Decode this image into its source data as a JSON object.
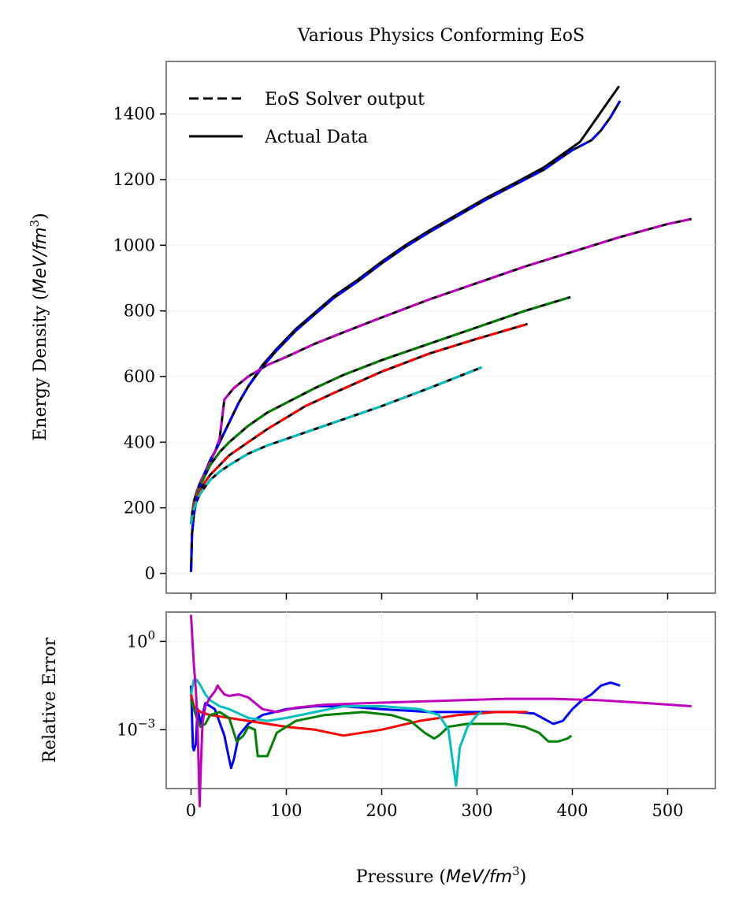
{
  "chart_data": [
    {
      "type": "line",
      "title": "Various Physics Conforming EoS",
      "xlabel": "Pressure",
      "xlabel_unit": "MeV/fm",
      "ylabel": "Energy Density",
      "ylabel_unit": "MeV/fm",
      "unit_exponent": "3",
      "xlim": [
        -26,
        550
      ],
      "ylim": [
        -60,
        1560
      ],
      "x_ticks": [
        0,
        100,
        200,
        300,
        400,
        500
      ],
      "x_tick_labels": [
        "0",
        "100",
        "200",
        "300",
        "400",
        "500"
      ],
      "y_ticks": [
        0,
        200,
        400,
        600,
        800,
        1000,
        1200,
        1400
      ],
      "y_tick_labels": [
        "0",
        "200",
        "400",
        "600",
        "800",
        "1000",
        "1200",
        "1400"
      ],
      "legend": {
        "position": "top-left",
        "entries": [
          {
            "label": "EoS Solver output",
            "style": "dashed",
            "color": "#000000"
          },
          {
            "label": "Actual Data",
            "style": "solid",
            "color": "#000000"
          }
        ]
      },
      "series": [
        {
          "name": "blue",
          "color": "#0000ff",
          "x": [
            0,
            1,
            3,
            6,
            10,
            15,
            20,
            25,
            30,
            40,
            50,
            60,
            75,
            90,
            110,
            130,
            150,
            175,
            200,
            225,
            250,
            280,
            310,
            340,
            370,
            400,
            410,
            420,
            430,
            440,
            450
          ],
          "y": [
            5,
            120,
            180,
            230,
            270,
            310,
            345,
            370,
            400,
            460,
            520,
            570,
            630,
            680,
            740,
            790,
            840,
            890,
            945,
            995,
            1040,
            1090,
            1140,
            1185,
            1230,
            1290,
            1305,
            1320,
            1350,
            1390,
            1440
          ]
        },
        {
          "name": "blue-actual",
          "color": "#000000",
          "x": [
            0,
            1,
            3,
            6,
            10,
            15,
            20,
            25,
            30,
            40,
            50,
            60,
            75,
            90,
            110,
            130,
            150,
            175,
            200,
            225,
            250,
            280,
            310,
            340,
            370,
            408,
            449
          ],
          "y": [
            5,
            120,
            180,
            230,
            270,
            310,
            345,
            370,
            400,
            460,
            520,
            570,
            635,
            685,
            745,
            795,
            845,
            895,
            950,
            1000,
            1045,
            1095,
            1145,
            1190,
            1237,
            1315,
            1485
          ]
        },
        {
          "name": "magenta",
          "color": "#bf00bf",
          "x": [
            0,
            1,
            3,
            6,
            10,
            15,
            20,
            25,
            30,
            35,
            45,
            60,
            80,
            100,
            130,
            160,
            200,
            250,
            300,
            350,
            400,
            450,
            500,
            525
          ],
          "y": [
            150,
            180,
            220,
            250,
            280,
            310,
            340,
            370,
            410,
            530,
            565,
            600,
            635,
            660,
            700,
            735,
            780,
            835,
            885,
            935,
            980,
            1025,
            1065,
            1080
          ]
        },
        {
          "name": "green",
          "color": "#008000",
          "x": [
            0,
            1,
            3,
            6,
            10,
            15,
            20,
            30,
            40,
            60,
            80,
            100,
            130,
            160,
            200,
            250,
            300,
            350,
            398
          ],
          "y": [
            150,
            175,
            210,
            240,
            270,
            300,
            330,
            370,
            400,
            450,
            490,
            520,
            565,
            605,
            650,
            700,
            750,
            800,
            842
          ]
        },
        {
          "name": "red",
          "color": "#ff0000",
          "x": [
            0,
            1,
            3,
            6,
            10,
            15,
            20,
            30,
            40,
            60,
            80,
            100,
            120,
            150,
            200,
            250,
            300,
            353
          ],
          "y": [
            150,
            170,
            200,
            230,
            255,
            280,
            300,
            330,
            360,
            400,
            440,
            475,
            510,
            550,
            615,
            670,
            715,
            760
          ]
        },
        {
          "name": "cyan",
          "color": "#00bfbf",
          "x": [
            0,
            1,
            3,
            6,
            10,
            15,
            20,
            30,
            40,
            60,
            80,
            100,
            130,
            160,
            200,
            250,
            305
          ],
          "y": [
            150,
            170,
            195,
            220,
            245,
            265,
            285,
            310,
            330,
            365,
            390,
            410,
            440,
            470,
            510,
            565,
            628
          ]
        }
      ]
    },
    {
      "type": "line",
      "yscale": "log",
      "ylabel": "Relative Error",
      "xlim": [
        -26,
        550
      ],
      "ylim_exponent": [
        -5,
        1
      ],
      "y_ticks_exponent": [
        0,
        -3
      ],
      "y_tick_base": "10",
      "y_tick_exponents": [
        "0",
        "−3"
      ],
      "series": [
        {
          "name": "blue",
          "color": "#0000ff",
          "x": [
            0,
            2,
            3,
            5,
            7,
            10,
            15,
            25,
            35,
            40,
            42,
            45,
            50,
            60,
            75,
            100,
            130,
            160,
            200,
            250,
            300,
            340,
            360,
            380,
            390,
            400,
            410,
            420,
            430,
            440,
            450
          ],
          "log10y": [
            -1.5,
            -3.6,
            -3.7,
            -3.5,
            -2.3,
            -2.8,
            -2.1,
            -2.3,
            -3.2,
            -4.0,
            -4.3,
            -4.0,
            -3.2,
            -2.8,
            -2.5,
            -2.3,
            -2.2,
            -2.2,
            -2.3,
            -2.4,
            -2.4,
            -2.4,
            -2.45,
            -2.8,
            -2.7,
            -2.3,
            -2.0,
            -1.8,
            -1.5,
            -1.4,
            -1.5
          ]
        },
        {
          "name": "red",
          "color": "#ff0000",
          "x": [
            0,
            3,
            6,
            10,
            20,
            40,
            60,
            80,
            100,
            130,
            160,
            200,
            240,
            280,
            320,
            353
          ],
          "log10y": [
            -1.8,
            -2.2,
            -2.3,
            -2.4,
            -2.5,
            -2.6,
            -2.7,
            -2.8,
            -2.9,
            -3.0,
            -3.2,
            -3.0,
            -2.7,
            -2.5,
            -2.4,
            -2.4
          ]
        },
        {
          "name": "green",
          "color": "#008000",
          "x": [
            0,
            3,
            6,
            10,
            15,
            20,
            30,
            40,
            48,
            55,
            60,
            67,
            70,
            78,
            80,
            90,
            110,
            140,
            180,
            210,
            230,
            245,
            255,
            260,
            270,
            290,
            310,
            330,
            350,
            365,
            375,
            385,
            395,
            399
          ],
          "log10y": [
            -2.0,
            -2.3,
            -2.6,
            -2.9,
            -2.8,
            -2.5,
            -2.4,
            -2.6,
            -3.4,
            -3.2,
            -2.9,
            -3.0,
            -3.9,
            -3.9,
            -3.9,
            -3.1,
            -2.7,
            -2.5,
            -2.4,
            -2.5,
            -2.7,
            -3.1,
            -3.3,
            -3.2,
            -2.9,
            -2.8,
            -2.8,
            -2.8,
            -2.9,
            -3.1,
            -3.4,
            -3.4,
            -3.3,
            -3.2
          ]
        },
        {
          "name": "cyan",
          "color": "#00bfbf",
          "x": [
            0,
            3,
            6,
            10,
            15,
            20,
            30,
            40,
            60,
            80,
            100,
            130,
            160,
            200,
            240,
            260,
            270,
            275,
            278,
            282,
            290,
            300,
            305
          ],
          "log10y": [
            -1.8,
            -1.3,
            -1.3,
            -1.5,
            -1.8,
            -2.0,
            -2.2,
            -2.3,
            -2.6,
            -2.7,
            -2.6,
            -2.4,
            -2.2,
            -2.2,
            -2.3,
            -2.5,
            -3.0,
            -4.2,
            -4.9,
            -3.6,
            -2.9,
            -2.5,
            -2.4
          ]
        },
        {
          "name": "magenta",
          "color": "#bf00bf",
          "x": [
            0,
            1,
            3,
            5,
            6,
            7,
            8,
            9,
            10,
            12,
            15,
            20,
            25,
            28,
            30,
            35,
            40,
            50,
            60,
            75,
            90,
            110,
            140,
            180,
            230,
            280,
            330,
            380,
            430,
            480,
            525
          ],
          "log10y": [
            0.9,
            0.3,
            -0.8,
            -1.6,
            -2.2,
            -3.0,
            -4.2,
            -5.6,
            -4.5,
            -2.8,
            -2.2,
            -1.9,
            -1.7,
            -1.5,
            -1.6,
            -1.8,
            -1.85,
            -1.8,
            -1.9,
            -2.3,
            -2.4,
            -2.25,
            -2.15,
            -2.1,
            -2.05,
            -2.0,
            -1.95,
            -1.95,
            -2.0,
            -2.1,
            -2.2
          ]
        }
      ]
    }
  ]
}
